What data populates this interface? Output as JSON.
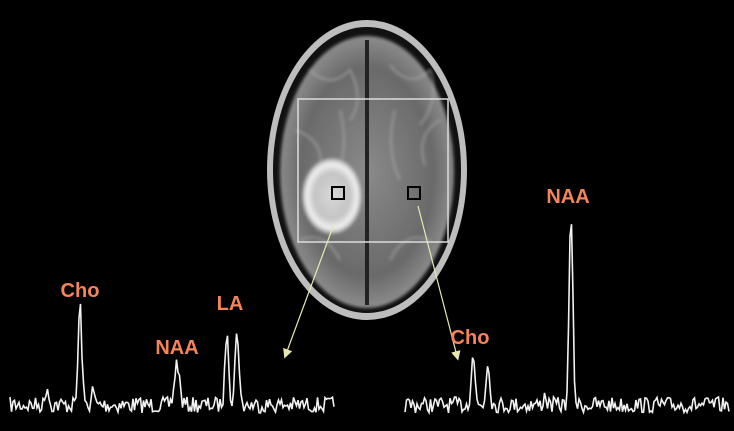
{
  "left_spectrum": {
    "labels": [
      "Cho",
      "NAA",
      "LA"
    ]
  },
  "right_spectrum": {
    "labels": [
      "Cho",
      "NAA"
    ]
  }
}
